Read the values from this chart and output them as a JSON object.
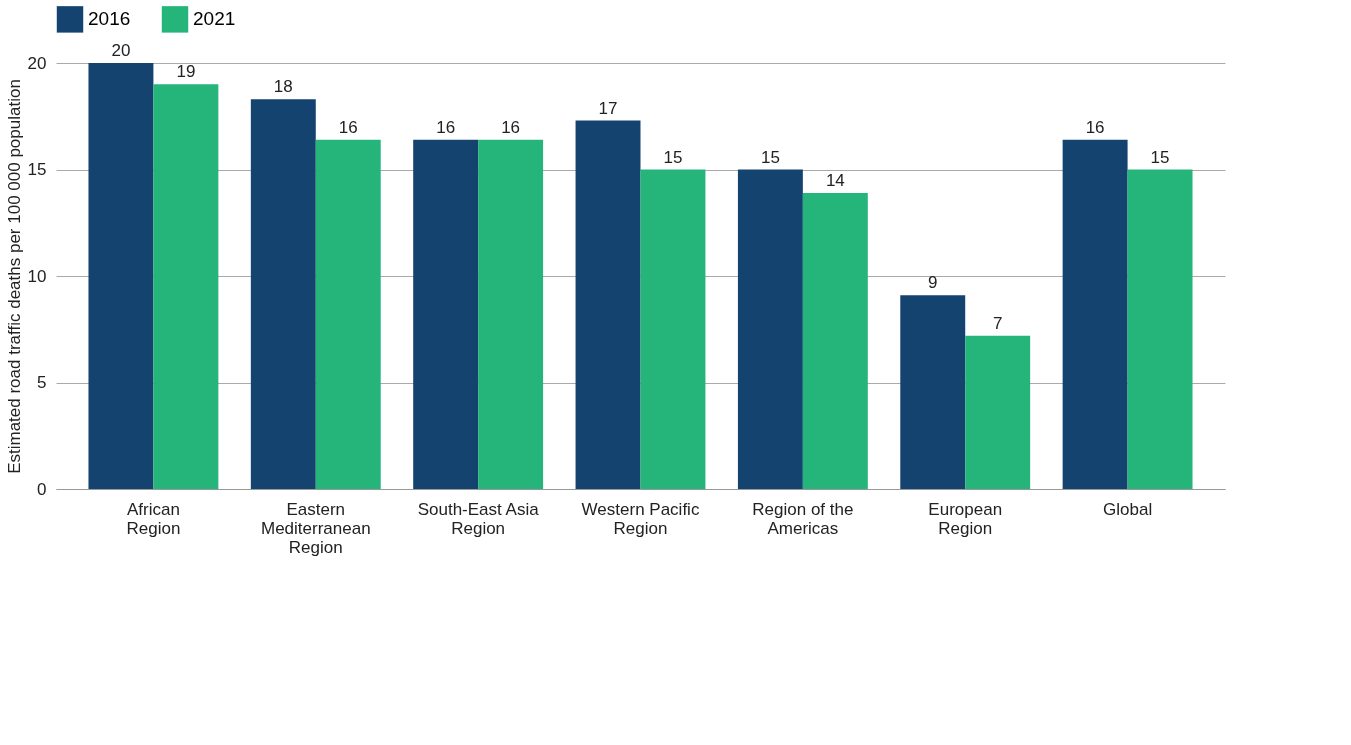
{
  "chart_data": {
    "type": "bar",
    "ylabel": "Estimated road traffic deaths per 100 000 population",
    "categories": [
      "African\nRegion",
      "Eastern\nMediterranean\nRegion",
      "South-East Asia\nRegion",
      "Western Pacific\nRegion",
      "Region of the\nAmericas",
      "European\nRegion",
      "Global"
    ],
    "series": [
      {
        "name": "2016",
        "color": "#154370",
        "values": [
          20.0,
          18.3,
          16.4,
          17.3,
          15.0,
          9.1,
          16.4
        ],
        "value_labels": [
          "20",
          "18",
          "16",
          "17",
          "15",
          "9",
          "16"
        ]
      },
      {
        "name": "2021",
        "color": "#25b57a",
        "values": [
          19.0,
          16.4,
          16.4,
          15.0,
          13.9,
          7.2,
          15.0
        ],
        "value_labels": [
          "19",
          "16",
          "16",
          "15",
          "14",
          "7",
          "15"
        ]
      }
    ],
    "ylim": [
      0,
      20
    ],
    "yticks": [
      0,
      5,
      10,
      15,
      20
    ],
    "grid": "y",
    "legend": "top"
  }
}
